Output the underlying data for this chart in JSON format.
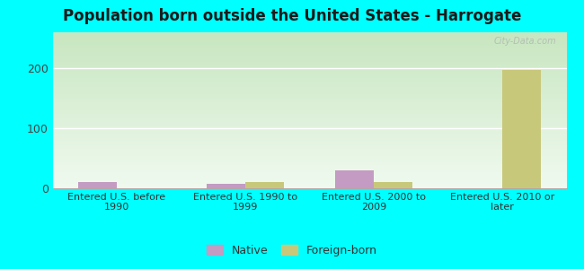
{
  "title": "Population born outside the United States - Harrogate",
  "categories": [
    "Entered U.S. before\n1990",
    "Entered U.S. 1990 to\n1999",
    "Entered U.S. 2000 to\n2009",
    "Entered U.S. 2010 or\nlater"
  ],
  "native_values": [
    10,
    8,
    30,
    0
  ],
  "foreign_values": [
    0,
    10,
    10,
    197
  ],
  "native_color": "#c39bc3",
  "foreign_color": "#c8c87a",
  "bg_color": "#00ffff",
  "plot_bg_top": "#c8e6c0",
  "plot_bg_bottom": "#f0faf0",
  "ylim": [
    0,
    260
  ],
  "yticks": [
    0,
    100,
    200
  ],
  "bar_width": 0.3,
  "watermark": "City-Data.com",
  "legend_native": "Native",
  "legend_foreign": "Foreign-born",
  "title_fontsize": 12,
  "tick_fontsize": 8,
  "ytick_fontsize": 9
}
